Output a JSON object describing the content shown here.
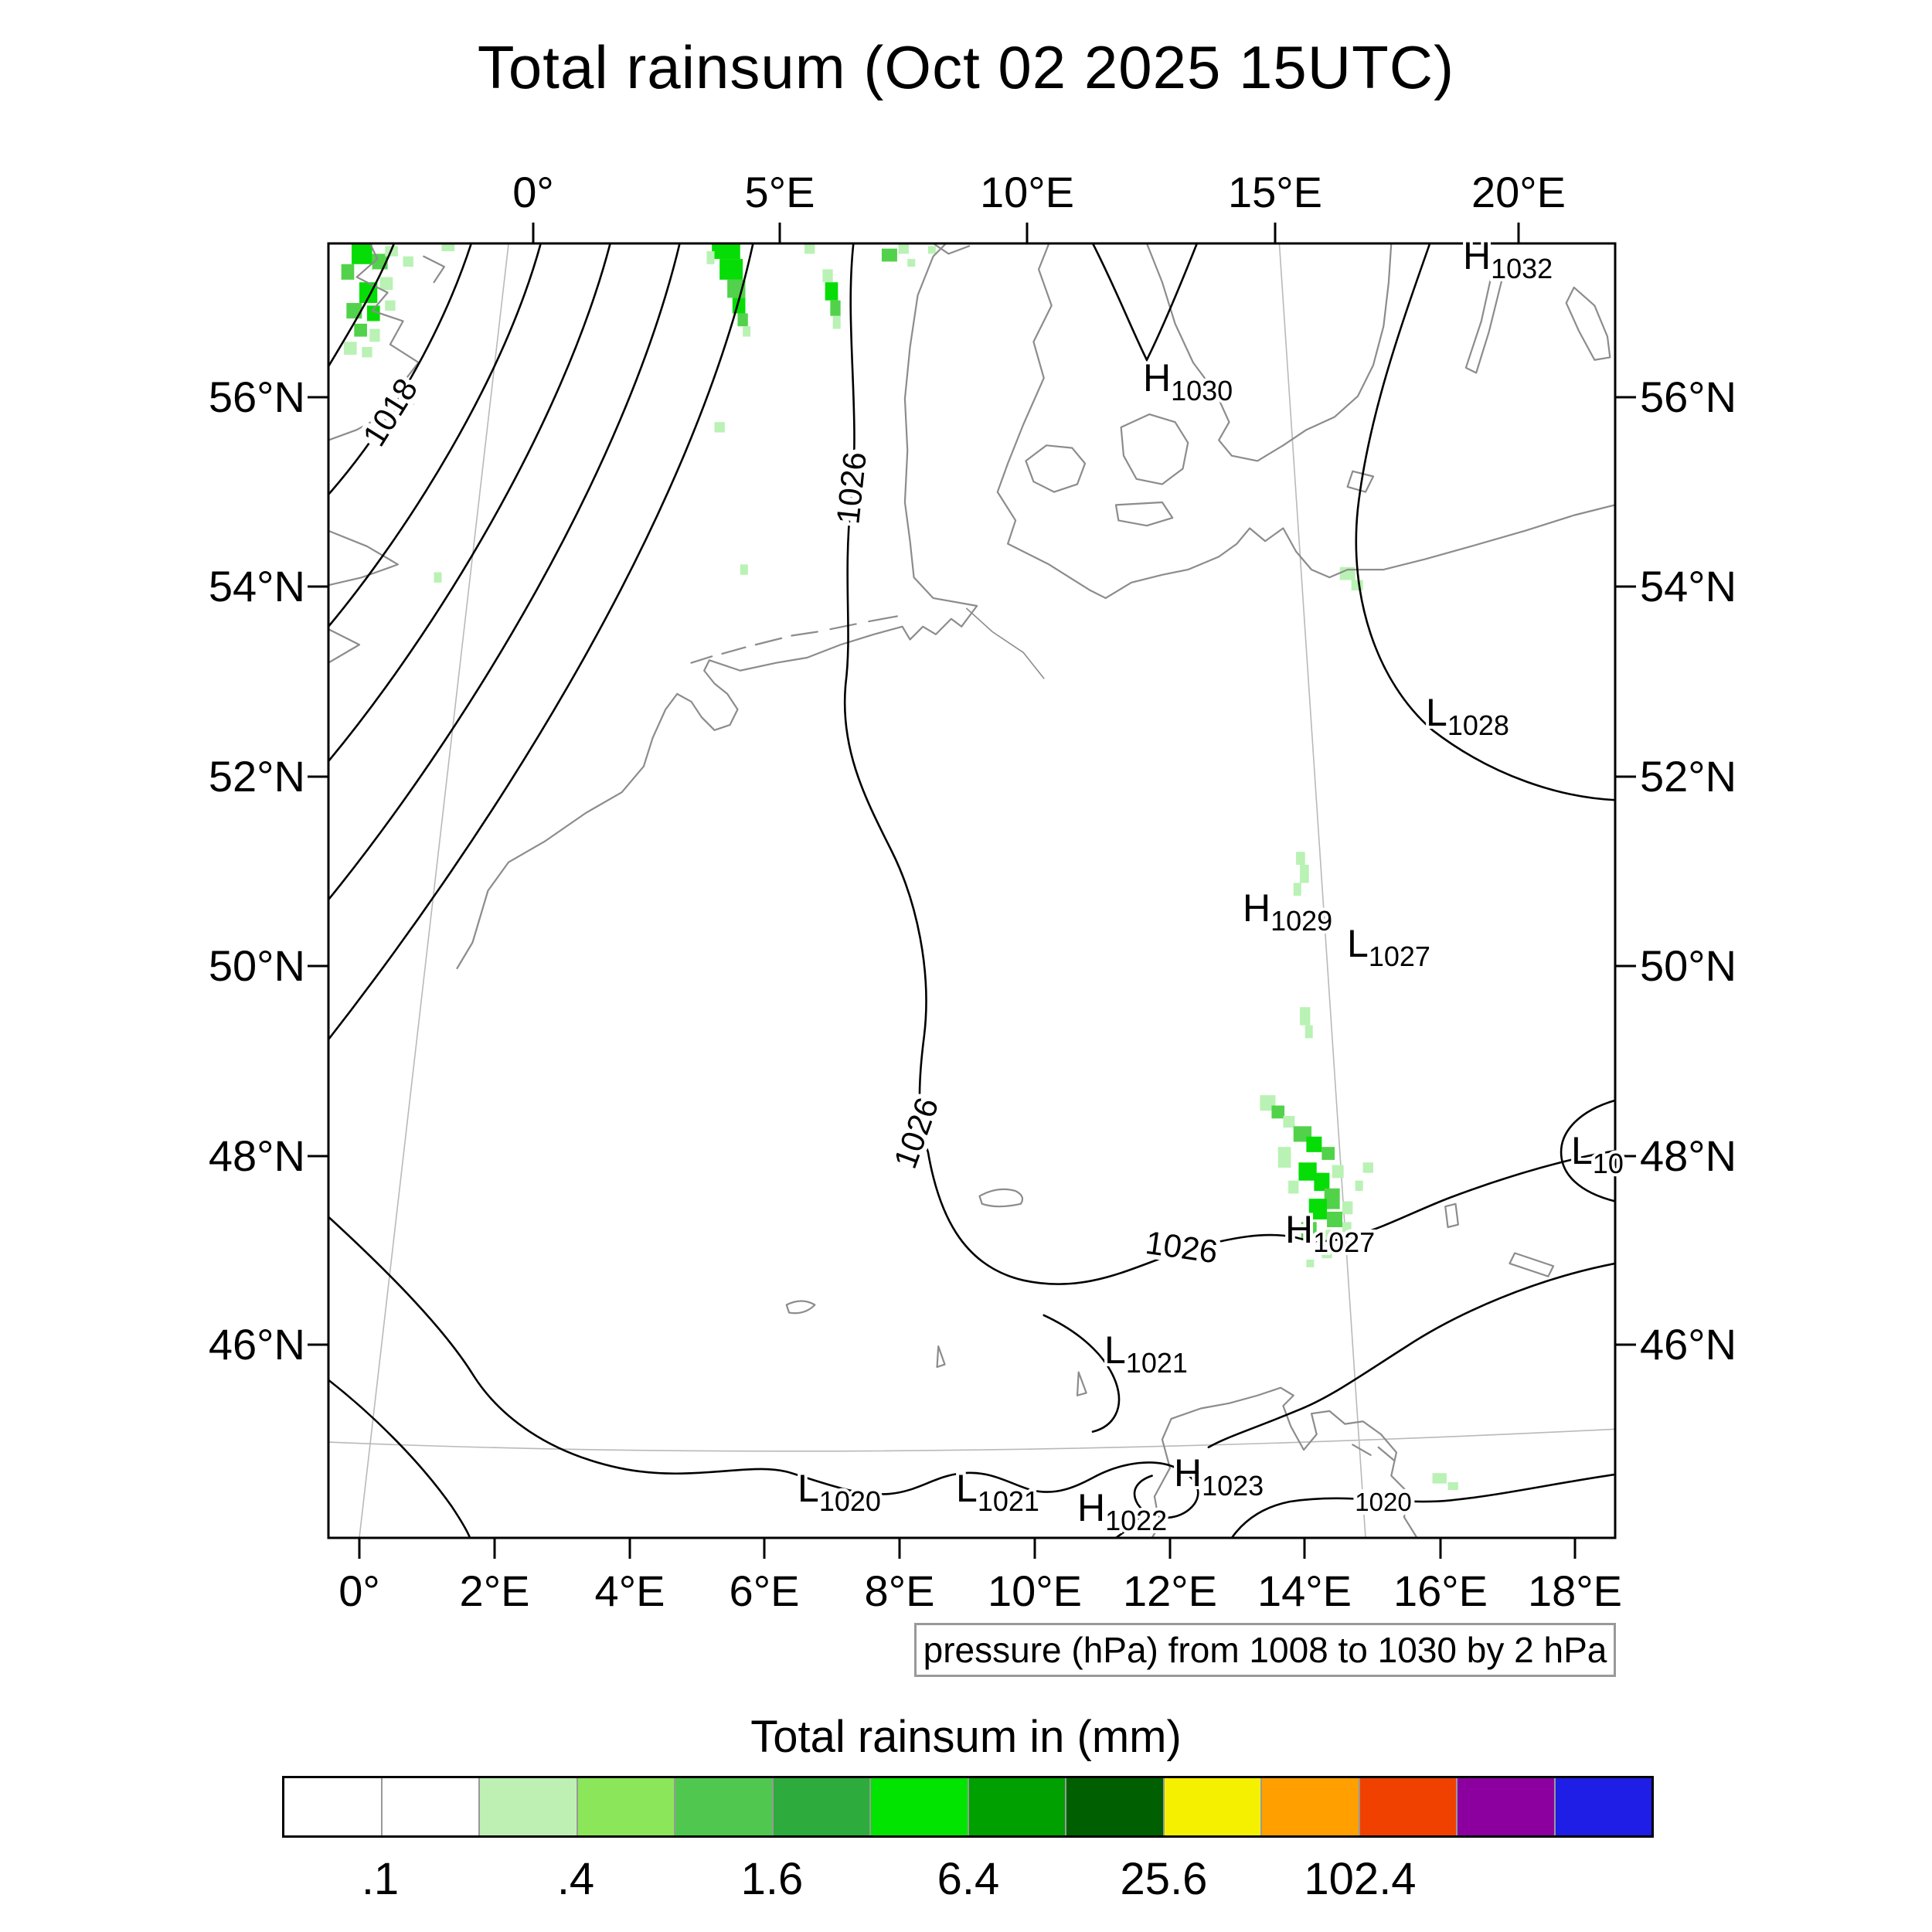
{
  "title": "Total rainsum (Oct 02 2025 15UTC)",
  "caption": "pressure (hPa) from 1008 to 1030 by 2 hPa",
  "map": {
    "top_ticks": [
      "0°",
      "5°E",
      "10°E",
      "15°E",
      "20°E"
    ],
    "bottom_ticks": [
      "0°",
      "2°E",
      "4°E",
      "6°E",
      "8°E",
      "10°E",
      "12°E",
      "14°E",
      "16°E",
      "18°E"
    ],
    "left_ticks": [
      "56°N",
      "54°N",
      "52°N",
      "50°N",
      "48°N",
      "46°N"
    ],
    "right_ticks": [
      "56°N",
      "54°N",
      "52°N",
      "50°N",
      "48°N",
      "46°N"
    ],
    "contour_labels": [
      "1018",
      "1026",
      "1026",
      "1026",
      "1020"
    ],
    "pressure_centers": [
      {
        "letter": "H",
        "value": "1032"
      },
      {
        "letter": "H",
        "value": "1030"
      },
      {
        "letter": "L",
        "value": "1028"
      },
      {
        "letter": "H",
        "value": "1029"
      },
      {
        "letter": "L",
        "value": "1027"
      },
      {
        "letter": "L",
        "value": "10"
      },
      {
        "letter": "H",
        "value": "1027"
      },
      {
        "letter": "L",
        "value": "1021"
      },
      {
        "letter": "L",
        "value": "1020"
      },
      {
        "letter": "L",
        "value": "1021"
      },
      {
        "letter": "H",
        "value": "1022"
      },
      {
        "letter": "H",
        "value": "1023"
      }
    ]
  },
  "colorbar": {
    "title": "Total rainsum in (mm)",
    "tick_labels": [
      ".1",
      ".4",
      "1.6",
      "6.4",
      "25.6",
      "102.4"
    ],
    "colors": [
      "#ffffff",
      "#ffffff",
      "#bef0b4",
      "#8ce65a",
      "#50c850",
      "#2dab3c",
      "#00e400",
      "#00a000",
      "#005f00",
      "#f5f000",
      "#ffa000",
      "#f04100",
      "#8c00a0",
      "#1e1ee6"
    ]
  },
  "chart_data": {
    "type": "heatmap",
    "title": "Total rainsum (Oct 02 2025 15UTC)",
    "map_region": {
      "lon_e": [
        0,
        20
      ],
      "lat_n": [
        44.5,
        57.6
      ]
    },
    "x_ticks_top_deg_e": [
      0,
      5,
      10,
      15,
      20
    ],
    "x_ticks_bottom_deg_e": [
      0,
      2,
      4,
      6,
      8,
      10,
      12,
      14,
      16,
      18
    ],
    "y_ticks_deg_n": [
      56,
      54,
      52,
      50,
      48,
      46
    ],
    "colorbar": {
      "label": "Total rainsum in (mm)",
      "boundaries_mm": [
        0.1,
        0.2,
        0.4,
        0.8,
        1.6,
        3.2,
        6.4,
        12.8,
        25.6,
        51.2,
        102.4,
        204.8
      ],
      "labeled_ticks_mm": [
        0.1,
        0.4,
        1.6,
        6.4,
        25.6,
        102.4
      ]
    },
    "pressure_field": {
      "units": "hPa",
      "min": 1008,
      "max": 1030,
      "interval": 2,
      "labeled_contours": [
        1018,
        1026,
        1026,
        1026,
        1020
      ]
    },
    "pressure_centers": [
      {
        "type": "H",
        "value_hpa": 1032,
        "lon_e": 16.5,
        "lat_n": 57.4
      },
      {
        "type": "H",
        "value_hpa": 1030,
        "lon_e": 11.7,
        "lat_n": 56.2
      },
      {
        "type": "L",
        "value_hpa": 1028,
        "lon_e": 15.9,
        "lat_n": 52.7
      },
      {
        "type": "H",
        "value_hpa": 1029,
        "lon_e": 13.2,
        "lat_n": 50.6
      },
      {
        "type": "L",
        "value_hpa": 1027,
        "lon_e": 14.8,
        "lat_n": 50.2
      },
      {
        "type": "L",
        "value_hpa": null,
        "lon_e": 18.1,
        "lat_n": 48.1
      },
      {
        "type": "H",
        "value_hpa": 1027,
        "lon_e": 13.8,
        "lat_n": 47.2
      },
      {
        "type": "L",
        "value_hpa": 1021,
        "lon_e": 11.2,
        "lat_n": 46.0
      },
      {
        "type": "L",
        "value_hpa": 1020,
        "lon_e": 6.6,
        "lat_n": 44.6
      },
      {
        "type": "L",
        "value_hpa": 1021,
        "lon_e": 9.0,
        "lat_n": 44.6
      },
      {
        "type": "H",
        "value_hpa": null,
        "lon_e": 10.8,
        "lat_n": 44.4
      },
      {
        "type": "H",
        "value_hpa": 1023,
        "lon_e": 12.2,
        "lat_n": 44.8
      }
    ],
    "rain_areas": [
      {
        "location": "NE England / North Sea (0-1E, 56-57.5N)",
        "approx_mm": "0.4-6.4"
      },
      {
        "location": "North Sea (5-6E, 56.5-57.5N)",
        "approx_mm": "0.4-6.4"
      },
      {
        "location": "Baltic coast (~14.5E, 54.5N)",
        "approx_mm": "0.1-0.4"
      },
      {
        "location": "~14E, 51N",
        "approx_mm": "0.1-0.4"
      },
      {
        "location": "Eastern Alps / Austria (13.5-15.5E, 46.5-48.5N)",
        "approx_mm": "0.4-6.4"
      },
      {
        "location": "~16E, 44.7N",
        "approx_mm": "0.1-0.4"
      }
    ]
  }
}
